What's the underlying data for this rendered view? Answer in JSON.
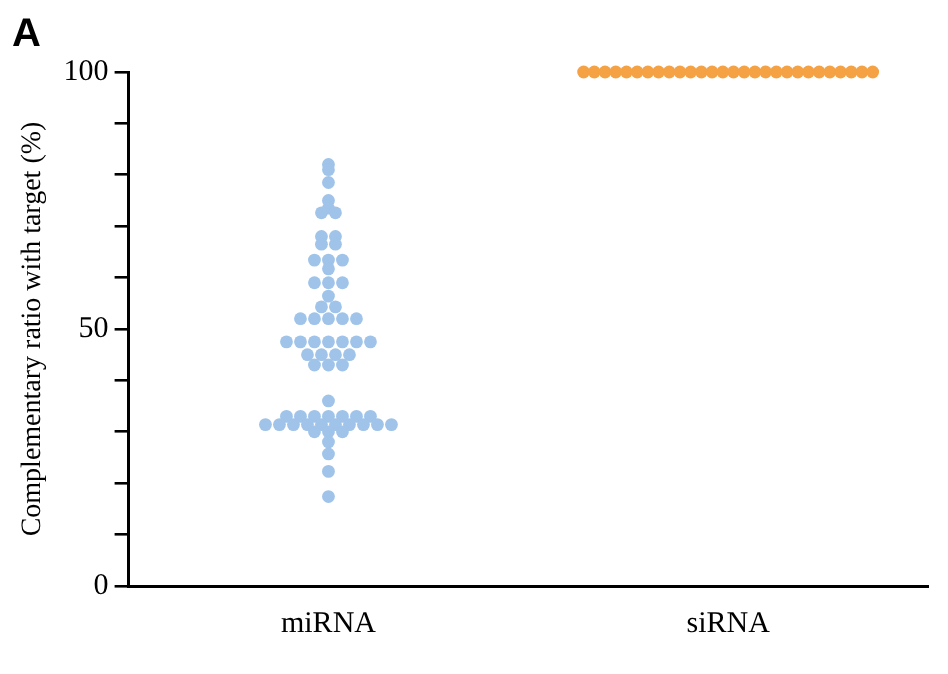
{
  "chart_data": {
    "type": "scatter",
    "ylabel": "Complementary ratio with target (%)",
    "annotations": [
      "A"
    ],
    "categories": [
      "miRNA",
      "siRNA"
    ],
    "ylim": [
      0,
      100
    ],
    "yticks": [
      0,
      {
        "value": 10,
        "label": null
      },
      {
        "value": 20,
        "label": null
      },
      {
        "value": 30,
        "label": null
      },
      {
        "value": 40,
        "label": null
      },
      50,
      {
        "value": 60,
        "label": null
      },
      {
        "value": 70,
        "label": null
      },
      {
        "value": 80,
        "label": null
      },
      {
        "value": 90,
        "label": null
      },
      100
    ],
    "grid": false,
    "legend": false,
    "marker": "circle",
    "series": [
      {
        "color": "#9fc3e9",
        "x": [
          "miRNA",
          "miRNA",
          "miRNA",
          "miRNA",
          "miRNA",
          "miRNA",
          "miRNA",
          "miRNA",
          "miRNA",
          "miRNA",
          "miRNA",
          "miRNA",
          "miRNA",
          "miRNA",
          "miRNA",
          "miRNA",
          "miRNA",
          "miRNA",
          "miRNA",
          "miRNA",
          "miRNA",
          "miRNA",
          "miRNA",
          "miRNA",
          "miRNA",
          "miRNA",
          "miRNA",
          "miRNA",
          "miRNA",
          "miRNA",
          "miRNA",
          "miRNA",
          "miRNA",
          "miRNA",
          "miRNA",
          "miRNA",
          "miRNA",
          "miRNA",
          "miRNA",
          "miRNA",
          "miRNA",
          "miRNA",
          "miRNA",
          "miRNA",
          "miRNA",
          "miRNA",
          "miRNA",
          "miRNA",
          "miRNA",
          "miRNA",
          "miRNA",
          "miRNA",
          "miRNA",
          "miRNA",
          "miRNA",
          "miRNA",
          "miRNA",
          "miRNA",
          "miRNA",
          "miRNA",
          "miRNA",
          "miRNA",
          "miRNA",
          "miRNA",
          "miRNA"
        ],
        "values": [
          82,
          81,
          78.5,
          75,
          73.5,
          72.6,
          72.6,
          68,
          68,
          66.5,
          66.5,
          63.4,
          63.4,
          63.4,
          61.7,
          59,
          59,
          59,
          56.4,
          54.3,
          54.3,
          52,
          52,
          52,
          52,
          52,
          47.5,
          47.5,
          47.5,
          47.5,
          47.5,
          47.5,
          47.5,
          45,
          45,
          45,
          45,
          43,
          43,
          43,
          36,
          33,
          33,
          33,
          33,
          33,
          33,
          33,
          31.4,
          31.4,
          31.4,
          31.4,
          31.4,
          31.4,
          31.4,
          31.4,
          31.4,
          31.4,
          30,
          30,
          30,
          28,
          25.7,
          22.3,
          17.4
        ]
      },
      {
        "color": "#f5a244",
        "x": [
          "siRNA",
          "siRNA",
          "siRNA",
          "siRNA",
          "siRNA",
          "siRNA",
          "siRNA",
          "siRNA",
          "siRNA",
          "siRNA",
          "siRNA",
          "siRNA",
          "siRNA",
          "siRNA",
          "siRNA",
          "siRNA",
          "siRNA",
          "siRNA",
          "siRNA",
          "siRNA",
          "siRNA",
          "siRNA",
          "siRNA",
          "siRNA",
          "siRNA",
          "siRNA",
          "siRNA",
          "siRNA"
        ],
        "values": [
          100,
          100,
          100,
          100,
          100,
          100,
          100,
          100,
          100,
          100,
          100,
          100,
          100,
          100,
          100,
          100,
          100,
          100,
          100,
          100,
          100,
          100,
          100,
          100,
          100,
          100,
          100,
          100
        ]
      }
    ]
  }
}
